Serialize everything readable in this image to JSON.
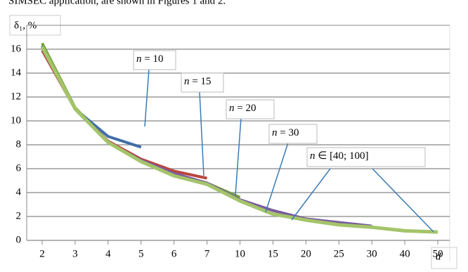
{
  "caption_fragment": "SIMSEC application, are shown in Figures 1 and 2.",
  "chart_data": {
    "type": "line",
    "y_label": "δ₁, %",
    "x_label": "d",
    "categories": [
      "2",
      "3",
      "4",
      "5",
      "6",
      "7",
      "10",
      "15",
      "20",
      "25",
      "30",
      "40",
      "50"
    ],
    "series": [
      {
        "name": "n = 10",
        "color": "#3f6ea8",
        "values": [
          16.3,
          11.0,
          8.7,
          7.8,
          null,
          null,
          null,
          null,
          null,
          null,
          null,
          null,
          null
        ]
      },
      {
        "name": "n = 15",
        "color": "#b9463f",
        "values": [
          15.9,
          11.0,
          8.3,
          6.8,
          5.8,
          5.2,
          null,
          null,
          null,
          null,
          null,
          null,
          null
        ]
      },
      {
        "name": "n = 20",
        "color": "#72a03a",
        "values": [
          16.5,
          11.1,
          8.2,
          6.6,
          5.5,
          4.8,
          3.6,
          null,
          null,
          null,
          null,
          null,
          null
        ]
      },
      {
        "name": "n = 30",
        "color": "#7b5c9c",
        "values": [
          16.1,
          11.0,
          8.2,
          6.7,
          5.6,
          4.8,
          3.4,
          2.5,
          1.8,
          1.5,
          1.2,
          null,
          null
        ]
      },
      {
        "name": "n ∈ [40; 100]",
        "color": "#a4c46a",
        "values": [
          16.2,
          11.0,
          8.2,
          6.6,
          5.4,
          4.7,
          3.3,
          2.2,
          1.7,
          1.3,
          1.1,
          0.8,
          0.7
        ]
      }
    ],
    "ylim": [
      0,
      18
    ],
    "yticks": [
      0,
      2,
      4,
      6,
      8,
      10,
      12,
      14,
      16
    ],
    "grid": true
  }
}
